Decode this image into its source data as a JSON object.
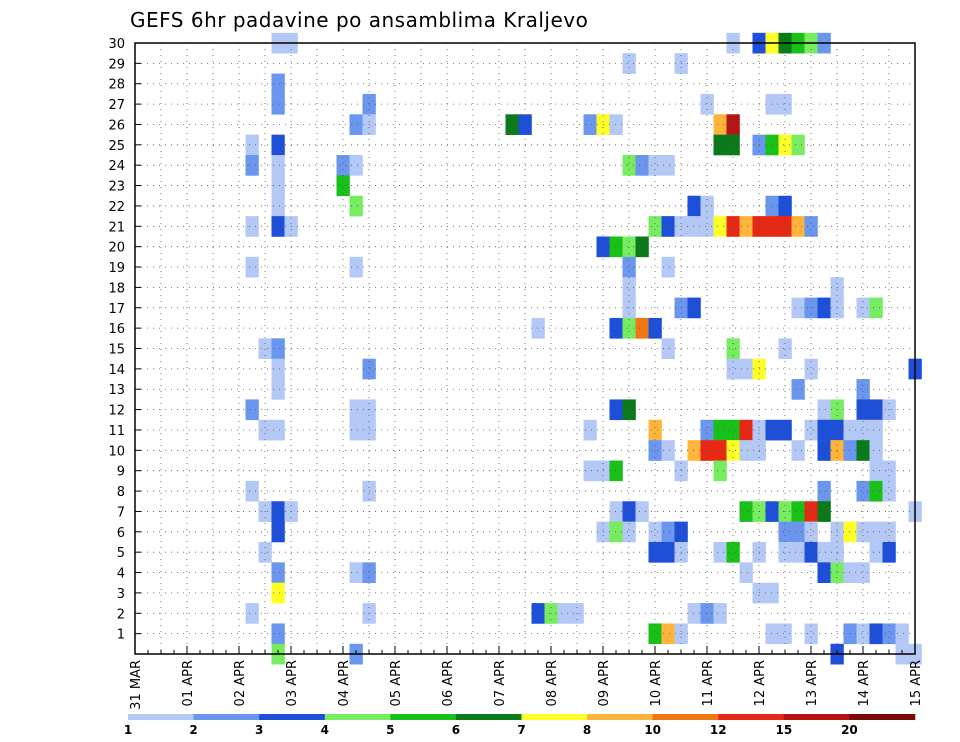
{
  "title": "GEFS 6hr padavine po ansamblima Kraljevo",
  "chart_data": {
    "type": "heatmap",
    "title": "GEFS 6hr padavine po ansamblima Kraljevo",
    "x_tick_labels": [
      "31 MAR",
      "01 APR",
      "02 APR",
      "03 APR",
      "04 APR",
      "05 APR",
      "06 APR",
      "07 APR",
      "08 APR",
      "09 APR",
      "10 APR",
      "11 APR",
      "12 APR",
      "13 APR",
      "14 APR",
      "15 APR"
    ],
    "y_tick_labels": [
      "1",
      "2",
      "3",
      "4",
      "5",
      "6",
      "7",
      "8",
      "9",
      "10",
      "11",
      "12",
      "13",
      "14",
      "15",
      "16",
      "17",
      "18",
      "19",
      "20",
      "21",
      "22",
      "23",
      "24",
      "25",
      "26",
      "27",
      "28",
      "29",
      "30"
    ],
    "x_range_steps": [
      0,
      60
    ],
    "y_range_members": [
      0,
      30
    ],
    "step_hours": 6,
    "grid": true,
    "legend_placement": "bottom",
    "legend": {
      "colors": [
        "#b4c8f5",
        "#6a96ee",
        "#1e4fd8",
        "#78ec60",
        "#18c018",
        "#0a7a1a",
        "#ffff28",
        "#ffb43c",
        "#f07814",
        "#e62814",
        "#b41414",
        "#7a0a0a"
      ],
      "labels": [
        "1",
        "2",
        "3",
        "4",
        "5",
        "6",
        "7",
        "8",
        "10",
        "12",
        "15",
        "20"
      ]
    },
    "cells": [
      [
        11,
        30,
        1
      ],
      [
        12,
        30,
        1
      ],
      [
        46,
        30,
        1
      ],
      [
        48,
        30,
        3
      ],
      [
        49,
        30,
        7
      ],
      [
        50,
        30,
        6
      ],
      [
        51,
        30,
        5
      ],
      [
        52,
        30,
        4
      ],
      [
        53,
        30,
        2
      ],
      [
        38,
        29,
        1
      ],
      [
        42,
        29,
        1
      ],
      [
        11,
        28,
        2
      ],
      [
        11,
        27,
        2
      ],
      [
        18,
        27,
        2
      ],
      [
        44,
        27,
        1
      ],
      [
        49,
        27,
        1
      ],
      [
        50,
        27,
        1
      ],
      [
        17,
        26,
        2
      ],
      [
        18,
        26,
        1
      ],
      [
        29,
        26,
        6
      ],
      [
        30,
        26,
        3
      ],
      [
        35,
        26,
        2
      ],
      [
        36,
        26,
        7
      ],
      [
        37,
        26,
        1
      ],
      [
        45,
        26,
        8
      ],
      [
        46,
        26,
        11
      ],
      [
        9,
        25,
        1
      ],
      [
        11,
        25,
        3
      ],
      [
        45,
        25,
        6
      ],
      [
        46,
        25,
        6
      ],
      [
        48,
        25,
        2
      ],
      [
        49,
        25,
        5
      ],
      [
        50,
        25,
        7
      ],
      [
        51,
        25,
        4
      ],
      [
        9,
        24,
        2
      ],
      [
        11,
        24,
        1
      ],
      [
        16,
        24,
        2
      ],
      [
        17,
        24,
        1
      ],
      [
        38,
        24,
        4
      ],
      [
        39,
        24,
        2
      ],
      [
        40,
        24,
        1
      ],
      [
        41,
        24,
        1
      ],
      [
        11,
        23,
        1
      ],
      [
        16,
        23,
        5
      ],
      [
        11,
        22,
        1
      ],
      [
        17,
        22,
        4
      ],
      [
        43,
        22,
        3
      ],
      [
        44,
        22,
        1
      ],
      [
        49,
        22,
        2
      ],
      [
        50,
        22,
        3
      ],
      [
        9,
        21,
        1
      ],
      [
        11,
        21,
        3
      ],
      [
        12,
        21,
        1
      ],
      [
        40,
        21,
        4
      ],
      [
        41,
        21,
        3
      ],
      [
        42,
        21,
        1
      ],
      [
        43,
        21,
        1
      ],
      [
        44,
        21,
        1
      ],
      [
        45,
        21,
        7
      ],
      [
        46,
        21,
        10
      ],
      [
        47,
        21,
        8
      ],
      [
        48,
        21,
        10
      ],
      [
        49,
        21,
        10
      ],
      [
        50,
        21,
        10
      ],
      [
        51,
        21,
        8
      ],
      [
        52,
        21,
        2
      ],
      [
        36,
        20,
        3
      ],
      [
        37,
        20,
        5
      ],
      [
        38,
        20,
        4
      ],
      [
        39,
        20,
        6
      ],
      [
        9,
        19,
        1
      ],
      [
        17,
        19,
        1
      ],
      [
        38,
        19,
        2
      ],
      [
        41,
        19,
        1
      ],
      [
        38,
        18,
        1
      ],
      [
        54,
        18,
        1
      ],
      [
        38,
        17,
        1
      ],
      [
        42,
        17,
        2
      ],
      [
        43,
        17,
        3
      ],
      [
        51,
        17,
        1
      ],
      [
        52,
        17,
        2
      ],
      [
        53,
        17,
        3
      ],
      [
        54,
        17,
        1
      ],
      [
        56,
        17,
        1
      ],
      [
        57,
        17,
        4
      ],
      [
        31,
        16,
        1
      ],
      [
        37,
        16,
        3
      ],
      [
        38,
        16,
        4
      ],
      [
        39,
        16,
        9
      ],
      [
        40,
        16,
        3
      ],
      [
        10,
        15,
        1
      ],
      [
        11,
        15,
        2
      ],
      [
        41,
        15,
        1
      ],
      [
        46,
        15,
        4
      ],
      [
        50,
        15,
        1
      ],
      [
        11,
        14,
        1
      ],
      [
        18,
        14,
        2
      ],
      [
        46,
        14,
        1
      ],
      [
        47,
        14,
        1
      ],
      [
        48,
        14,
        7
      ],
      [
        52,
        14,
        1
      ],
      [
        60,
        14,
        3
      ],
      [
        11,
        13,
        1
      ],
      [
        51,
        13,
        2
      ],
      [
        56,
        13,
        2
      ],
      [
        9,
        12,
        2
      ],
      [
        17,
        12,
        1
      ],
      [
        18,
        12,
        1
      ],
      [
        37,
        12,
        3
      ],
      [
        38,
        12,
        6
      ],
      [
        53,
        12,
        1
      ],
      [
        54,
        12,
        4
      ],
      [
        56,
        12,
        3
      ],
      [
        57,
        12,
        3
      ],
      [
        58,
        12,
        1
      ],
      [
        10,
        11,
        1
      ],
      [
        11,
        11,
        1
      ],
      [
        17,
        11,
        1
      ],
      [
        18,
        11,
        1
      ],
      [
        35,
        11,
        1
      ],
      [
        40,
        11,
        8
      ],
      [
        44,
        11,
        2
      ],
      [
        45,
        11,
        5
      ],
      [
        46,
        11,
        5
      ],
      [
        47,
        11,
        10
      ],
      [
        48,
        11,
        1
      ],
      [
        49,
        11,
        3
      ],
      [
        50,
        11,
        3
      ],
      [
        52,
        11,
        1
      ],
      [
        53,
        11,
        3
      ],
      [
        54,
        11,
        3
      ],
      [
        55,
        11,
        1
      ],
      [
        56,
        11,
        1
      ],
      [
        57,
        11,
        1
      ],
      [
        40,
        10,
        2
      ],
      [
        41,
        10,
        1
      ],
      [
        43,
        10,
        8
      ],
      [
        44,
        10,
        10
      ],
      [
        45,
        10,
        10
      ],
      [
        46,
        10,
        7
      ],
      [
        47,
        10,
        1
      ],
      [
        48,
        10,
        1
      ],
      [
        51,
        10,
        1
      ],
      [
        53,
        10,
        3
      ],
      [
        54,
        10,
        8
      ],
      [
        55,
        10,
        2
      ],
      [
        56,
        10,
        6
      ],
      [
        57,
        10,
        1
      ],
      [
        35,
        9,
        1
      ],
      [
        36,
        9,
        1
      ],
      [
        37,
        9,
        5
      ],
      [
        42,
        9,
        1
      ],
      [
        45,
        9,
        4
      ],
      [
        57,
        9,
        1
      ],
      [
        58,
        9,
        1
      ],
      [
        9,
        8,
        1
      ],
      [
        18,
        8,
        1
      ],
      [
        53,
        8,
        2
      ],
      [
        56,
        8,
        2
      ],
      [
        57,
        8,
        5
      ],
      [
        58,
        8,
        1
      ],
      [
        10,
        7,
        1
      ],
      [
        11,
        7,
        3
      ],
      [
        12,
        7,
        1
      ],
      [
        37,
        7,
        1
      ],
      [
        38,
        7,
        3
      ],
      [
        39,
        7,
        1
      ],
      [
        47,
        7,
        5
      ],
      [
        48,
        7,
        4
      ],
      [
        49,
        7,
        3
      ],
      [
        50,
        7,
        4
      ],
      [
        51,
        7,
        5
      ],
      [
        52,
        7,
        10
      ],
      [
        53,
        7,
        6
      ],
      [
        60,
        7,
        1
      ],
      [
        11,
        6,
        3
      ],
      [
        36,
        6,
        1
      ],
      [
        37,
        6,
        4
      ],
      [
        38,
        6,
        1
      ],
      [
        40,
        6,
        1
      ],
      [
        41,
        6,
        2
      ],
      [
        42,
        6,
        3
      ],
      [
        50,
        6,
        2
      ],
      [
        51,
        6,
        2
      ],
      [
        52,
        6,
        1
      ],
      [
        54,
        6,
        1
      ],
      [
        55,
        6,
        7
      ],
      [
        56,
        6,
        1
      ],
      [
        57,
        6,
        1
      ],
      [
        58,
        6,
        1
      ],
      [
        10,
        5,
        1
      ],
      [
        40,
        5,
        3
      ],
      [
        41,
        5,
        3
      ],
      [
        42,
        5,
        1
      ],
      [
        45,
        5,
        1
      ],
      [
        46,
        5,
        5
      ],
      [
        48,
        5,
        1
      ],
      [
        50,
        5,
        1
      ],
      [
        51,
        5,
        1
      ],
      [
        52,
        5,
        3
      ],
      [
        53,
        5,
        1
      ],
      [
        54,
        5,
        1
      ],
      [
        57,
        5,
        1
      ],
      [
        58,
        5,
        3
      ],
      [
        11,
        4,
        2
      ],
      [
        17,
        4,
        1
      ],
      [
        18,
        4,
        2
      ],
      [
        47,
        4,
        1
      ],
      [
        53,
        4,
        3
      ],
      [
        54,
        4,
        4
      ],
      [
        55,
        4,
        1
      ],
      [
        56,
        4,
        1
      ],
      [
        11,
        3,
        7
      ],
      [
        48,
        3,
        1
      ],
      [
        49,
        3,
        1
      ],
      [
        9,
        2,
        1
      ],
      [
        18,
        2,
        1
      ],
      [
        31,
        2,
        3
      ],
      [
        32,
        2,
        4
      ],
      [
        33,
        2,
        1
      ],
      [
        34,
        2,
        1
      ],
      [
        43,
        2,
        1
      ],
      [
        44,
        2,
        2
      ],
      [
        45,
        2,
        1
      ],
      [
        11,
        1,
        2
      ],
      [
        40,
        1,
        5
      ],
      [
        41,
        1,
        8
      ],
      [
        42,
        1,
        1
      ],
      [
        49,
        1,
        1
      ],
      [
        50,
        1,
        1
      ],
      [
        52,
        1,
        1
      ],
      [
        55,
        1,
        2
      ],
      [
        56,
        1,
        1
      ],
      [
        57,
        1,
        3
      ],
      [
        58,
        1,
        2
      ],
      [
        59,
        1,
        1
      ],
      [
        11,
        0,
        4
      ],
      [
        17,
        0,
        2
      ],
      [
        54,
        0,
        3
      ],
      [
        59,
        0,
        1
      ],
      [
        60,
        0,
        1
      ]
    ]
  }
}
